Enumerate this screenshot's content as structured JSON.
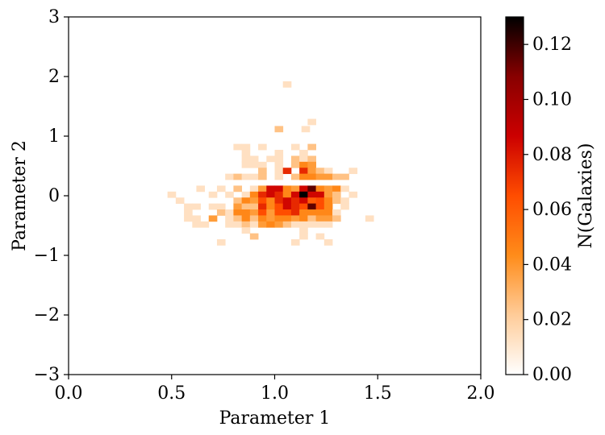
{
  "chart_data": {
    "type": "heatmap",
    "title": "",
    "xlabel": "Parameter 1",
    "ylabel": "Parameter 2",
    "xlim": [
      0.0,
      2.0
    ],
    "ylim": [
      -3,
      3
    ],
    "x_ticks": [
      "0.0",
      "0.5",
      "1.0",
      "1.5",
      "2.0"
    ],
    "y_ticks": [
      "−3",
      "−2",
      "−1",
      "0",
      "1",
      "2",
      "3"
    ],
    "colorbar": {
      "label": "N(Galaxies)",
      "range": [
        0.0,
        0.13
      ],
      "ticks": [
        "0.00",
        "0.02",
        "0.04",
        "0.06",
        "0.08",
        "0.10",
        "0.12"
      ],
      "colormap": "gist_heat_r",
      "colors": [
        "#ffffff",
        "#ffcc99",
        "#ff8c1a",
        "#ff4d00",
        "#cc0000",
        "#880000",
        "#000000"
      ]
    },
    "bin_width": [
      0.04,
      0.1
    ],
    "bins": [
      [
        1.06,
        1.87,
        0.013
      ],
      [
        1.02,
        1.12,
        0.025
      ],
      [
        1.15,
        1.12,
        0.013
      ],
      [
        1.18,
        1.24,
        0.013
      ],
      [
        0.82,
        0.82,
        0.013
      ],
      [
        0.86,
        0.82,
        0.013
      ],
      [
        0.94,
        0.82,
        0.013
      ],
      [
        1.1,
        0.82,
        0.013
      ],
      [
        1.18,
        0.82,
        0.025
      ],
      [
        0.86,
        0.72,
        0.013
      ],
      [
        1.02,
        0.72,
        0.013
      ],
      [
        1.14,
        0.72,
        0.013
      ],
      [
        0.86,
        0.62,
        0.013
      ],
      [
        0.9,
        0.62,
        0.013
      ],
      [
        0.98,
        0.62,
        0.013
      ],
      [
        1.02,
        0.62,
        0.013
      ],
      [
        1.1,
        0.62,
        0.025
      ],
      [
        1.14,
        0.62,
        0.013
      ],
      [
        1.18,
        0.62,
        0.025
      ],
      [
        0.86,
        0.52,
        0.013
      ],
      [
        0.9,
        0.52,
        0.013
      ],
      [
        0.94,
        0.52,
        0.013
      ],
      [
        1.02,
        0.52,
        0.013
      ],
      [
        1.1,
        0.52,
        0.025
      ],
      [
        1.14,
        0.52,
        0.045
      ],
      [
        1.18,
        0.52,
        0.038
      ],
      [
        0.94,
        0.42,
        0.025
      ],
      [
        1.02,
        0.42,
        0.013
      ],
      [
        1.06,
        0.42,
        0.075
      ],
      [
        1.14,
        0.42,
        0.075
      ],
      [
        1.18,
        0.42,
        0.038
      ],
      [
        1.22,
        0.42,
        0.025
      ],
      [
        1.26,
        0.42,
        0.013
      ],
      [
        1.38,
        0.42,
        0.013
      ],
      [
        0.78,
        0.32,
        0.013
      ],
      [
        0.82,
        0.32,
        0.025
      ],
      [
        0.86,
        0.32,
        0.013
      ],
      [
        0.9,
        0.32,
        0.013
      ],
      [
        0.94,
        0.32,
        0.025
      ],
      [
        1.02,
        0.32,
        0.013
      ],
      [
        1.1,
        0.32,
        0.025
      ],
      [
        1.14,
        0.32,
        0.045
      ],
      [
        1.18,
        0.32,
        0.045
      ],
      [
        1.22,
        0.32,
        0.038
      ],
      [
        1.26,
        0.32,
        0.038
      ],
      [
        1.3,
        0.32,
        0.025
      ],
      [
        1.34,
        0.32,
        0.025
      ],
      [
        0.64,
        0.12,
        0.013
      ],
      [
        0.74,
        0.12,
        0.013
      ],
      [
        0.82,
        0.12,
        0.025
      ],
      [
        0.9,
        0.12,
        0.013
      ],
      [
        0.94,
        0.12,
        0.038
      ],
      [
        0.98,
        0.12,
        0.085
      ],
      [
        1.02,
        0.12,
        0.085
      ],
      [
        1.06,
        0.12,
        0.045
      ],
      [
        1.1,
        0.12,
        0.038
      ],
      [
        1.14,
        0.12,
        0.085
      ],
      [
        1.18,
        0.12,
        0.115
      ],
      [
        1.22,
        0.12,
        0.045
      ],
      [
        1.26,
        0.12,
        0.038
      ],
      [
        1.3,
        0.12,
        0.045
      ],
      [
        1.34,
        0.12,
        0.013
      ],
      [
        0.5,
        0.02,
        0.013
      ],
      [
        0.7,
        0.02,
        0.013
      ],
      [
        0.78,
        0.02,
        0.013
      ],
      [
        0.86,
        0.02,
        0.013
      ],
      [
        0.9,
        0.02,
        0.045
      ],
      [
        0.94,
        0.02,
        0.075
      ],
      [
        0.98,
        0.02,
        0.085
      ],
      [
        1.02,
        0.02,
        0.075
      ],
      [
        1.06,
        0.02,
        0.045
      ],
      [
        1.1,
        0.02,
        0.085
      ],
      [
        1.14,
        0.02,
        0.13
      ],
      [
        1.18,
        0.02,
        0.085
      ],
      [
        1.22,
        0.02,
        0.085
      ],
      [
        1.26,
        0.02,
        0.038
      ],
      [
        1.3,
        0.02,
        0.025
      ],
      [
        1.38,
        0.02,
        0.013
      ],
      [
        0.54,
        -0.08,
        0.013
      ],
      [
        0.82,
        -0.08,
        0.025
      ],
      [
        0.86,
        -0.08,
        0.045
      ],
      [
        0.9,
        -0.08,
        0.038
      ],
      [
        0.94,
        -0.08,
        0.065
      ],
      [
        0.98,
        -0.08,
        0.045
      ],
      [
        1.02,
        -0.08,
        0.075
      ],
      [
        1.06,
        -0.08,
        0.085
      ],
      [
        1.1,
        -0.08,
        0.075
      ],
      [
        1.14,
        -0.08,
        0.085
      ],
      [
        1.18,
        -0.08,
        0.06
      ],
      [
        1.22,
        -0.08,
        0.065
      ],
      [
        1.26,
        -0.08,
        0.045
      ],
      [
        1.3,
        -0.08,
        0.025
      ],
      [
        1.34,
        -0.08,
        0.013
      ],
      [
        0.58,
        -0.18,
        0.013
      ],
      [
        0.62,
        -0.18,
        0.013
      ],
      [
        0.7,
        -0.18,
        0.013
      ],
      [
        0.74,
        -0.18,
        0.013
      ],
      [
        0.82,
        -0.18,
        0.038
      ],
      [
        0.86,
        -0.18,
        0.025
      ],
      [
        0.9,
        -0.18,
        0.025
      ],
      [
        0.94,
        -0.18,
        0.075
      ],
      [
        0.98,
        -0.18,
        0.045
      ],
      [
        1.02,
        -0.18,
        0.065
      ],
      [
        1.06,
        -0.18,
        0.085
      ],
      [
        1.1,
        -0.18,
        0.075
      ],
      [
        1.14,
        -0.18,
        0.065
      ],
      [
        1.18,
        -0.18,
        0.115
      ],
      [
        1.22,
        -0.18,
        0.065
      ],
      [
        1.26,
        -0.18,
        0.045
      ],
      [
        1.34,
        -0.18,
        0.013
      ],
      [
        0.58,
        -0.28,
        0.013
      ],
      [
        0.74,
        -0.28,
        0.025
      ],
      [
        0.78,
        -0.28,
        0.013
      ],
      [
        0.82,
        -0.28,
        0.045
      ],
      [
        0.86,
        -0.28,
        0.045
      ],
      [
        0.9,
        -0.28,
        0.038
      ],
      [
        0.94,
        -0.28,
        0.065
      ],
      [
        0.98,
        -0.28,
        0.038
      ],
      [
        1.02,
        -0.28,
        0.065
      ],
      [
        1.06,
        -0.28,
        0.065
      ],
      [
        1.1,
        -0.28,
        0.075
      ],
      [
        1.14,
        -0.28,
        0.045
      ],
      [
        1.18,
        -0.28,
        0.045
      ],
      [
        1.22,
        -0.28,
        0.045
      ],
      [
        1.26,
        -0.28,
        0.045
      ],
      [
        1.3,
        -0.28,
        0.013
      ],
      [
        0.58,
        -0.38,
        0.013
      ],
      [
        0.62,
        -0.38,
        0.013
      ],
      [
        0.7,
        -0.38,
        0.038
      ],
      [
        0.78,
        -0.38,
        0.013
      ],
      [
        0.82,
        -0.38,
        0.025
      ],
      [
        0.86,
        -0.38,
        0.045
      ],
      [
        0.9,
        -0.38,
        0.025
      ],
      [
        0.94,
        -0.38,
        0.045
      ],
      [
        0.98,
        -0.38,
        0.038
      ],
      [
        1.02,
        -0.38,
        0.045
      ],
      [
        1.06,
        -0.38,
        0.045
      ],
      [
        1.1,
        -0.38,
        0.038
      ],
      [
        1.14,
        -0.38,
        0.045
      ],
      [
        1.18,
        -0.38,
        0.025
      ],
      [
        1.22,
        -0.38,
        0.038
      ],
      [
        1.26,
        -0.38,
        0.038
      ],
      [
        1.3,
        -0.38,
        0.025
      ],
      [
        1.46,
        -0.38,
        0.013
      ],
      [
        0.62,
        -0.48,
        0.013
      ],
      [
        0.66,
        -0.48,
        0.013
      ],
      [
        0.78,
        -0.48,
        0.013
      ],
      [
        0.82,
        -0.48,
        0.013
      ],
      [
        0.86,
        -0.48,
        0.025
      ],
      [
        0.9,
        -0.48,
        0.013
      ],
      [
        0.94,
        -0.48,
        0.038
      ],
      [
        0.98,
        -0.48,
        0.045
      ],
      [
        1.02,
        -0.48,
        0.038
      ],
      [
        1.06,
        -0.48,
        0.025
      ],
      [
        1.1,
        -0.48,
        0.013
      ],
      [
        1.14,
        -0.48,
        0.013
      ],
      [
        1.18,
        -0.48,
        0.013
      ],
      [
        1.22,
        -0.48,
        0.013
      ],
      [
        1.26,
        -0.48,
        0.013
      ],
      [
        0.86,
        -0.58,
        0.013
      ],
      [
        1.14,
        -0.58,
        0.013
      ],
      [
        0.9,
        -0.68,
        0.025
      ],
      [
        1.14,
        -0.68,
        0.013
      ],
      [
        1.22,
        -0.68,
        0.013
      ],
      [
        0.74,
        -0.78,
        0.013
      ],
      [
        1.1,
        -0.78,
        0.013
      ],
      [
        1.26,
        -0.78,
        0.013
      ]
    ]
  }
}
